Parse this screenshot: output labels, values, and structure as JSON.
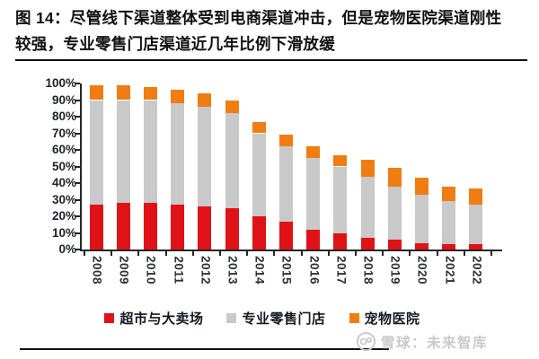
{
  "figure": {
    "title_line1": "图 14：尽管线下渠道整体受到电商渠道冲击，但是宠物医院渠道刚性",
    "title_line2": "较强，专业零售门店渠道近几年比例下滑放缓"
  },
  "watermark": {
    "text": "雪球：未来智库",
    "logo_icon": "xueqiu-circle-logo"
  },
  "colors": {
    "title_text": "#111111",
    "axis": "#262626",
    "tick_label": "#1d2129",
    "watermark": "#c9c9c9",
    "series_red": "#df1317",
    "series_gray": "#c9c9c9",
    "series_orange": "#f07d12"
  },
  "chart_data": {
    "type": "bar",
    "stacked": true,
    "title": "",
    "xlabel": "",
    "ylabel": "",
    "grid": false,
    "legend_position": "bottom",
    "ylim": [
      0,
      100
    ],
    "y_ticks": [
      "0%",
      "10%",
      "20%",
      "30%",
      "40%",
      "50%",
      "60%",
      "70%",
      "80%",
      "90%",
      "100%"
    ],
    "categories": [
      "2008",
      "2009",
      "2010",
      "2011",
      "2012",
      "2013",
      "2014",
      "2015",
      "2016",
      "2017",
      "2018",
      "2019",
      "2020",
      "2021",
      "2022"
    ],
    "series": [
      {
        "name": "超市与大卖场",
        "color": "#df1317",
        "values": [
          27,
          28,
          28,
          27,
          26,
          25,
          20,
          17,
          12,
          10,
          7,
          6,
          4,
          3,
          3
        ]
      },
      {
        "name": "专业零售门店",
        "color": "#c9c9c9",
        "values": [
          63,
          62,
          62,
          61,
          60,
          57,
          50,
          45,
          43,
          40,
          37,
          32,
          29,
          26,
          24
        ]
      },
      {
        "name": "宠物医院",
        "color": "#f07d12",
        "values": [
          9,
          9,
          8,
          8,
          8,
          8,
          7,
          7,
          7,
          7,
          10,
          11,
          10,
          9,
          10
        ]
      }
    ],
    "totals": [
      99,
      99,
      98,
      96,
      94,
      90,
      77,
      69,
      62,
      57,
      54,
      49,
      43,
      38,
      37
    ]
  }
}
